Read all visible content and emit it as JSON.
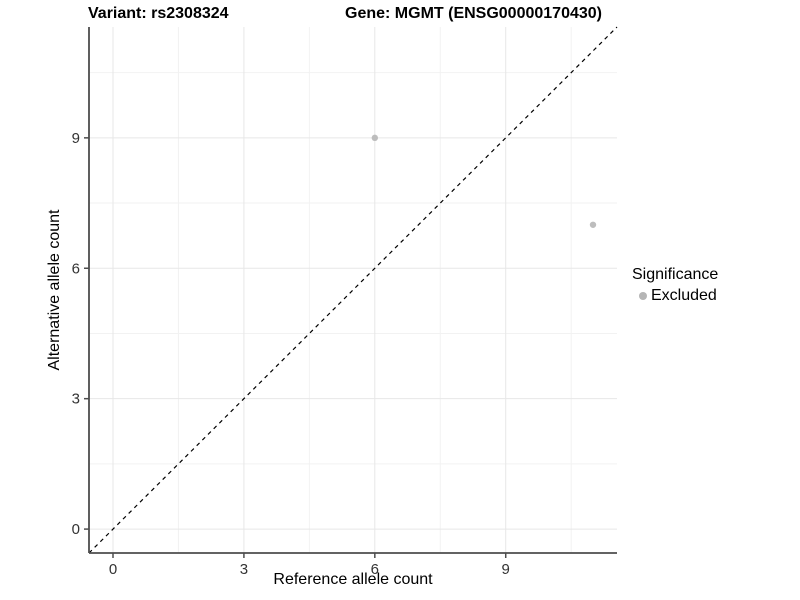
{
  "titles": {
    "variant": "Variant: rs2308324",
    "gene": "Gene: MGMT (ENSG00000170430)"
  },
  "axes": {
    "x_label": "Reference allele count",
    "y_label": "Alternative allele count"
  },
  "legend": {
    "title": "Significance",
    "items": [
      {
        "label": "Excluded",
        "color": "#b5b5b5"
      }
    ]
  },
  "colors": {
    "background": "#ffffff",
    "point": "#bdbdbd",
    "grid_major": "#e7e7e7",
    "grid_minor": "#f2f2f2",
    "axis_line": "#4d4d4d",
    "tick_label": "#333333",
    "identity_line": "#000000"
  },
  "chart_data": {
    "type": "scatter",
    "title": "Variant: rs2308324    Gene: MGMT (ENSG00000170430)",
    "xlabel": "Reference allele count",
    "ylabel": "Alternative allele count",
    "xlim": [
      -0.55,
      11.55
    ],
    "ylim": [
      -0.55,
      11.55
    ],
    "x_ticks": [
      0,
      3,
      6,
      9
    ],
    "y_ticks": [
      0,
      3,
      6,
      9
    ],
    "x_minor_ticks": [
      1.5,
      4.5,
      7.5,
      10.5
    ],
    "y_minor_ticks": [
      1.5,
      4.5,
      7.5,
      10.5
    ],
    "grid": true,
    "legend_position": "right",
    "series": [
      {
        "name": "Excluded",
        "color": "#bdbdbd",
        "points": [
          [
            6,
            9
          ],
          [
            11,
            7
          ]
        ]
      }
    ],
    "reference_line": {
      "kind": "identity",
      "style": "dashed",
      "color": "#000000"
    }
  }
}
